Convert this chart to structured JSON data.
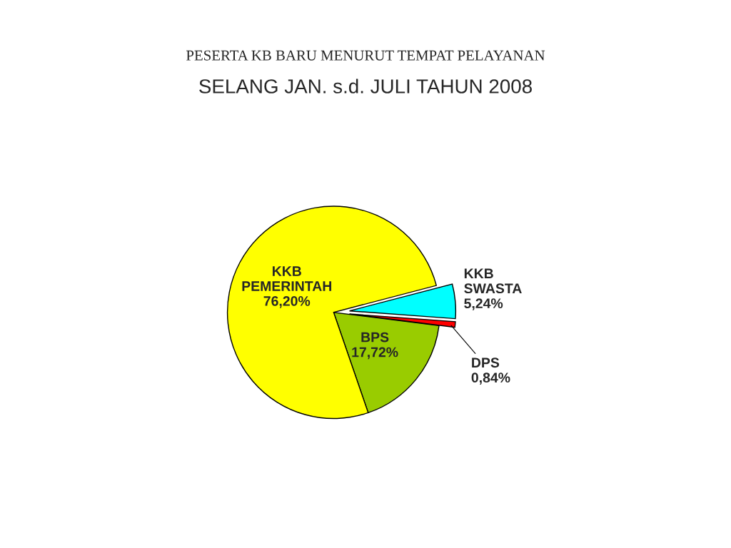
{
  "chart_data": {
    "type": "pie",
    "title": "PESERTA KB BARU MENURUT TEMPAT PELAYANAN",
    "subtitle": "SELANG JAN. s.d. JULI TAHUN 2008",
    "categories": [
      "BPS",
      "DPS",
      "KKB SWASTA",
      "KKB PEMERINTAH"
    ],
    "values": [
      17.72,
      0.84,
      5.24,
      76.2
    ],
    "value_labels": [
      "17,72%",
      "0,84%",
      "5,24%",
      "76,20%"
    ],
    "colors": [
      "#99cc00",
      "#ff0000",
      "#00ffff",
      "#ffff00"
    ],
    "legend": false
  }
}
